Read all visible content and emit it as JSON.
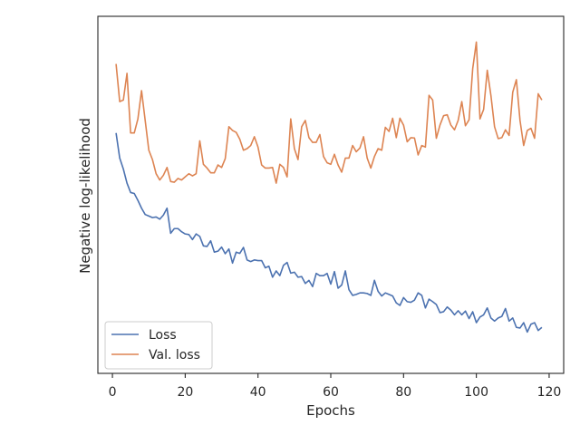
{
  "chart_data": {
    "type": "line",
    "xlabel": "Epochs",
    "ylabel": "Negative log-likelihood",
    "xlim": [
      -4,
      124
    ],
    "ylim": [
      0,
      1
    ],
    "xticks": [
      0,
      20,
      40,
      60,
      80,
      100,
      120
    ],
    "y_tick_labels_shown": false,
    "grid": false,
    "legend_position": "lower-left",
    "x": [
      1,
      2,
      3,
      4,
      5,
      6,
      7,
      8,
      9,
      10,
      11,
      12,
      13,
      14,
      15,
      16,
      17,
      18,
      19,
      20,
      21,
      22,
      23,
      24,
      25,
      26,
      27,
      28,
      29,
      30,
      31,
      32,
      33,
      34,
      35,
      36,
      37,
      38,
      39,
      40,
      41,
      42,
      43,
      44,
      45,
      46,
      47,
      48,
      49,
      50,
      51,
      52,
      53,
      54,
      55,
      56,
      57,
      58,
      59,
      60,
      61,
      62,
      63,
      64,
      65,
      66,
      67,
      68,
      69,
      70,
      71,
      72,
      73,
      74,
      75,
      76,
      77,
      78,
      79,
      80,
      81,
      82,
      83,
      84,
      85,
      86,
      87,
      88,
      89,
      90,
      91,
      92,
      93,
      94,
      95,
      96,
      97,
      98,
      99,
      100,
      101,
      102,
      103,
      104,
      105,
      106,
      107,
      108,
      109,
      110,
      111,
      112,
      113,
      114,
      115,
      116,
      117,
      118
    ],
    "series": [
      {
        "name": "Loss",
        "color": "#4c72b0",
        "values": [
          0.68,
          0.6,
          0.565,
          0.52,
          0.49,
          0.487,
          0.465,
          0.44,
          0.42,
          0.415,
          0.41,
          0.412,
          0.405,
          0.418,
          0.44,
          0.36,
          0.375,
          0.375,
          0.365,
          0.358,
          0.356,
          0.34,
          0.358,
          0.35,
          0.32,
          0.318,
          0.336,
          0.3,
          0.303,
          0.316,
          0.295,
          0.31,
          0.265,
          0.3,
          0.296,
          0.315,
          0.275,
          0.27,
          0.275,
          0.273,
          0.273,
          0.25,
          0.255,
          0.22,
          0.24,
          0.225,
          0.258,
          0.267,
          0.233,
          0.236,
          0.22,
          0.222,
          0.2,
          0.21,
          0.19,
          0.232,
          0.225,
          0.225,
          0.232,
          0.198,
          0.238,
          0.185,
          0.195,
          0.24,
          0.18,
          0.162,
          0.165,
          0.17,
          0.17,
          0.168,
          0.162,
          0.21,
          0.175,
          0.16,
          0.17,
          0.165,
          0.16,
          0.138,
          0.13,
          0.155,
          0.142,
          0.14,
          0.147,
          0.17,
          0.162,
          0.122,
          0.15,
          0.142,
          0.133,
          0.107,
          0.11,
          0.125,
          0.115,
          0.1,
          0.113,
          0.1,
          0.112,
          0.088,
          0.11,
          0.075,
          0.093,
          0.1,
          0.122,
          0.09,
          0.08,
          0.09,
          0.095,
          0.12,
          0.08,
          0.09,
          0.06,
          0.058,
          0.075,
          0.045,
          0.07,
          0.075,
          0.05,
          0.06
        ]
      },
      {
        "name": "Val. loss",
        "color": "#dd8452",
        "values": [
          0.9,
          0.78,
          0.785,
          0.87,
          0.68,
          0.68,
          0.725,
          0.815,
          0.72,
          0.625,
          0.595,
          0.55,
          0.53,
          0.545,
          0.57,
          0.525,
          0.523,
          0.535,
          0.53,
          0.54,
          0.55,
          0.543,
          0.55,
          0.655,
          0.58,
          0.568,
          0.553,
          0.553,
          0.578,
          0.57,
          0.598,
          0.7,
          0.688,
          0.682,
          0.66,
          0.625,
          0.63,
          0.64,
          0.668,
          0.635,
          0.578,
          0.568,
          0.568,
          0.57,
          0.52,
          0.58,
          0.57,
          0.54,
          0.725,
          0.63,
          0.595,
          0.7,
          0.72,
          0.665,
          0.65,
          0.65,
          0.675,
          0.605,
          0.585,
          0.58,
          0.612,
          0.578,
          0.555,
          0.6,
          0.6,
          0.64,
          0.62,
          0.632,
          0.668,
          0.6,
          0.568,
          0.605,
          0.63,
          0.625,
          0.698,
          0.685,
          0.727,
          0.665,
          0.727,
          0.705,
          0.652,
          0.665,
          0.664,
          0.61,
          0.64,
          0.635,
          0.8,
          0.785,
          0.663,
          0.705,
          0.735,
          0.738,
          0.705,
          0.69,
          0.72,
          0.78,
          0.703,
          0.722,
          0.885,
          0.97,
          0.725,
          0.755,
          0.88,
          0.8,
          0.7,
          0.662,
          0.665,
          0.69,
          0.672,
          0.81,
          0.85,
          0.72,
          0.64,
          0.688,
          0.695,
          0.663,
          0.805,
          0.785
        ]
      }
    ]
  }
}
